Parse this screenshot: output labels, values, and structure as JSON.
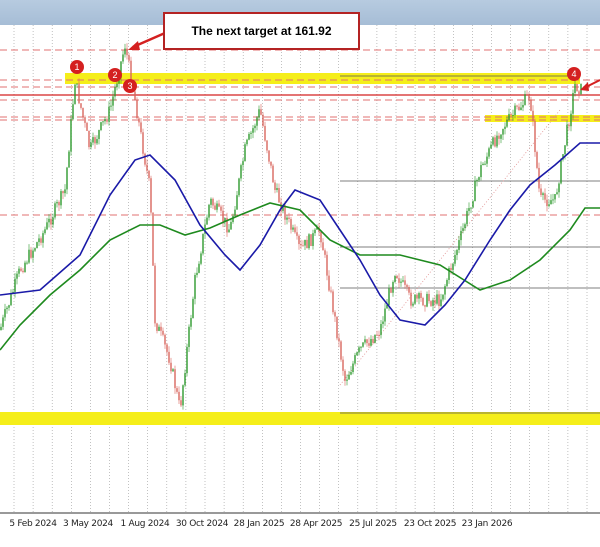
{
  "chart_data": {
    "type": "candlestick",
    "x_tick_labels": [
      "5 Feb 2024",
      "3 May 2024",
      "1 Aug 2024",
      "30 Oct 2024",
      "28 Jan 2025",
      "28 Apr 2025",
      "25 Jul 2025",
      "23 Oct 2025",
      "23 Jan 2026"
    ],
    "annotation": "The next target at 161.92",
    "markers": [
      "1",
      "2",
      "3",
      "4"
    ],
    "grid": true,
    "colors": {
      "up": "#2e9a2e",
      "down": "#d9665e",
      "ma_fast": "#1a1aa8",
      "ma_slow": "#1e8a1e",
      "support_band": "#f5ee1a",
      "level_line": "#d42020"
    }
  }
}
